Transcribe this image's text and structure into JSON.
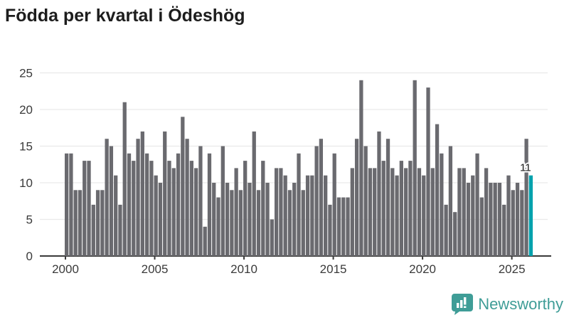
{
  "title": "Födda per kvartal i Ödeshög",
  "chart_data": {
    "type": "bar",
    "title": "Födda per kvartal i Ödeshög",
    "x_start": "2000-Q1",
    "x_end": "2026-Q1",
    "values": [
      14,
      14,
      9,
      9,
      13,
      13,
      7,
      9,
      9,
      16,
      15,
      11,
      7,
      21,
      14,
      13,
      16,
      17,
      14,
      13,
      11,
      10,
      17,
      13,
      12,
      14,
      19,
      16,
      13,
      12,
      15,
      4,
      14,
      10,
      8,
      15,
      10,
      9,
      12,
      9,
      13,
      10,
      17,
      9,
      13,
      10,
      5,
      12,
      12,
      11,
      9,
      10,
      14,
      9,
      11,
      11,
      15,
      16,
      11,
      7,
      14,
      8,
      8,
      8,
      12,
      16,
      24,
      15,
      12,
      12,
      17,
      13,
      16,
      12,
      11,
      13,
      12,
      13,
      24,
      12,
      11,
      23,
      12,
      18,
      14,
      7,
      15,
      6,
      12,
      12,
      10,
      11,
      14,
      8,
      12,
      10,
      10,
      10,
      7,
      11,
      9,
      10,
      9,
      16,
      11
    ],
    "highlight_last_bar": true,
    "highlight_value_label": "11",
    "x_tick_years": [
      2000,
      2005,
      2010,
      2015,
      2020,
      2025
    ],
    "x_tick_labels": [
      "2000",
      "2005",
      "2010",
      "2015",
      "2020",
      "2025"
    ],
    "y_ticks": [
      0,
      5,
      10,
      15,
      20,
      25
    ],
    "ylim": [
      0,
      25
    ],
    "grid": true,
    "legend": "none",
    "bar_color": "#6a6a6f",
    "highlight_color": "#00a2ad",
    "grid_color": "#e9e9e9",
    "axis_color": "#3a3a3a",
    "tick_label_color": "#3a3a3a"
  },
  "logo": {
    "text": "Newsworthy",
    "color": "#3f9d97",
    "icon": "newsworthy-chart-bubble-icon"
  }
}
